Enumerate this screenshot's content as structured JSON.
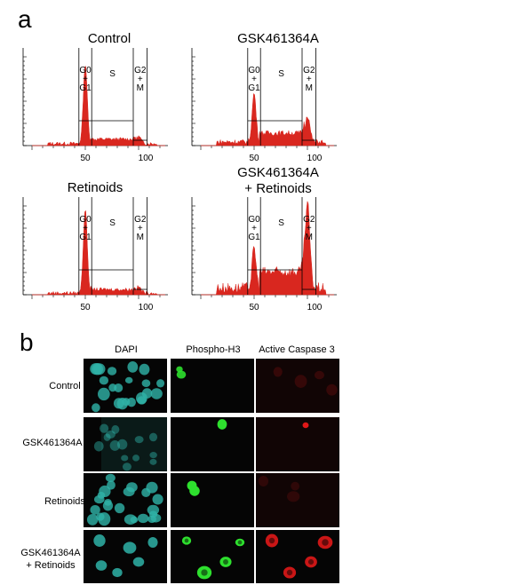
{
  "figure": {
    "panel_a_letter": "a",
    "panel_b_letter": "b"
  },
  "histograms": [
    {
      "title_lines": [
        "Control"
      ],
      "phase_labels": {
        "g0g1": [
          "G0",
          "+",
          "G1"
        ],
        "s": "S",
        "g2m": [
          "G2",
          "+",
          "M"
        ]
      },
      "tick_labels": [
        "50",
        "100"
      ],
      "g1_height": 0.9,
      "g2_height": 0.08,
      "s_level": 0.05,
      "noise": 0.02
    },
    {
      "title_lines": [
        "GSK461364A"
      ],
      "phase_labels": {
        "g0g1": [
          "G0",
          "+",
          "G1"
        ],
        "s": "S",
        "g2m": [
          "G2",
          "+",
          "M"
        ]
      },
      "tick_labels": [
        "50",
        "100"
      ],
      "g1_height": 0.55,
      "g2_height": 0.3,
      "s_level": 0.1,
      "noise": 0.03
    },
    {
      "title_lines": [
        "Retinoids"
      ],
      "phase_labels": {
        "g0g1": [
          "G0",
          "+",
          "G1"
        ],
        "s": "S",
        "g2m": [
          "G2",
          "+",
          "M"
        ]
      },
      "tick_labels": [
        "50",
        "100"
      ],
      "g1_height": 0.95,
      "g2_height": 0.07,
      "s_level": 0.04,
      "noise": 0.02
    },
    {
      "title_lines": [
        "GSK461364A",
        "+ Retinoids"
      ],
      "phase_labels": {
        "g0g1": [
          "G0",
          "+",
          "G1"
        ],
        "s": "S",
        "g2m": [
          "G2",
          "+",
          "M"
        ]
      },
      "tick_labels": [
        "50",
        "100"
      ],
      "g1_height": 0.45,
      "g2_height": 0.95,
      "s_level": 0.18,
      "noise": 0.06
    }
  ],
  "microscopy": {
    "columns": [
      "DAPI",
      "Phospho-H3",
      "Active Caspase 3"
    ],
    "rows": [
      {
        "label": "Control"
      },
      {
        "label": "GSK461364A"
      },
      {
        "label": "Retinoids"
      },
      {
        "label": "GSK461364A\n+ Retinoids"
      }
    ]
  },
  "colors": {
    "histogram_fill": "#d9271f",
    "dapi": "#2fb3a8",
    "phospho": "#2ee02e",
    "caspase": "#e01818",
    "tile_bg": "#050505"
  }
}
